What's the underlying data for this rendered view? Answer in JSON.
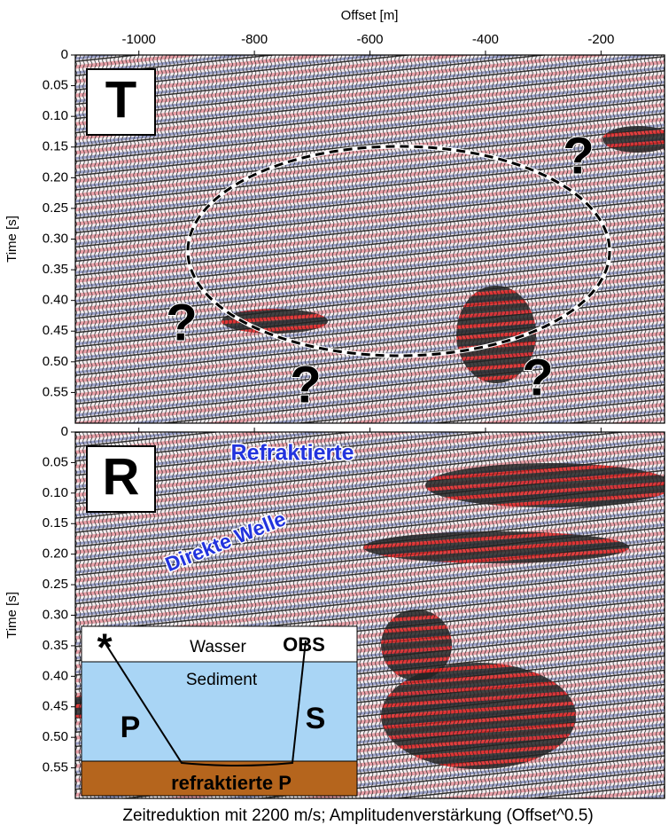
{
  "chart_data": [
    {
      "type": "seismic",
      "xlabel": "Offset [m]",
      "ylabel": "Time [s]",
      "xlim": [
        -1110,
        -90
      ],
      "xticks": [
        -1000,
        -800,
        -600,
        -400,
        -200
      ],
      "ylim": [
        0,
        0.6
      ],
      "yticks": [
        0,
        0.05,
        {
          "value": 0.1,
          "label": "0.10"
        },
        0.15,
        {
          "value": 0.2,
          "label": "0.20"
        },
        0.25,
        {
          "value": 0.3,
          "label": "0.30"
        },
        0.35,
        {
          "value": 0.4,
          "label": "0.40"
        },
        0.45,
        {
          "value": 0.5,
          "label": "0.50"
        },
        0.55
      ],
      "panel_label": "T",
      "annotations": [
        "?",
        "?",
        "?",
        "?"
      ]
    },
    {
      "type": "seismic",
      "ylabel": "Time [s]",
      "xlim": [
        -1110,
        -90
      ],
      "ylim": [
        0,
        0.6
      ],
      "yticks": [
        0,
        0.05,
        {
          "value": 0.1,
          "label": "0.10"
        },
        0.15,
        {
          "value": 0.2,
          "label": "0.20"
        },
        0.25,
        {
          "value": 0.3,
          "label": "0.30"
        },
        0.35,
        {
          "value": 0.4,
          "label": "0.40"
        },
        0.45,
        {
          "value": 0.5,
          "label": "0.50"
        },
        0.55
      ],
      "panel_label": "R",
      "annotations": [
        "Refraktierte",
        "Direkte Welle"
      ],
      "inset_labels": [
        "*",
        "Wasser",
        "OBS",
        "Sediment",
        "P",
        "S",
        "refraktierte P"
      ],
      "caption": "Zeitreduktion mit 2200 m/s; Amplitudenverstärkung (Offset^0.5)"
    }
  ]
}
